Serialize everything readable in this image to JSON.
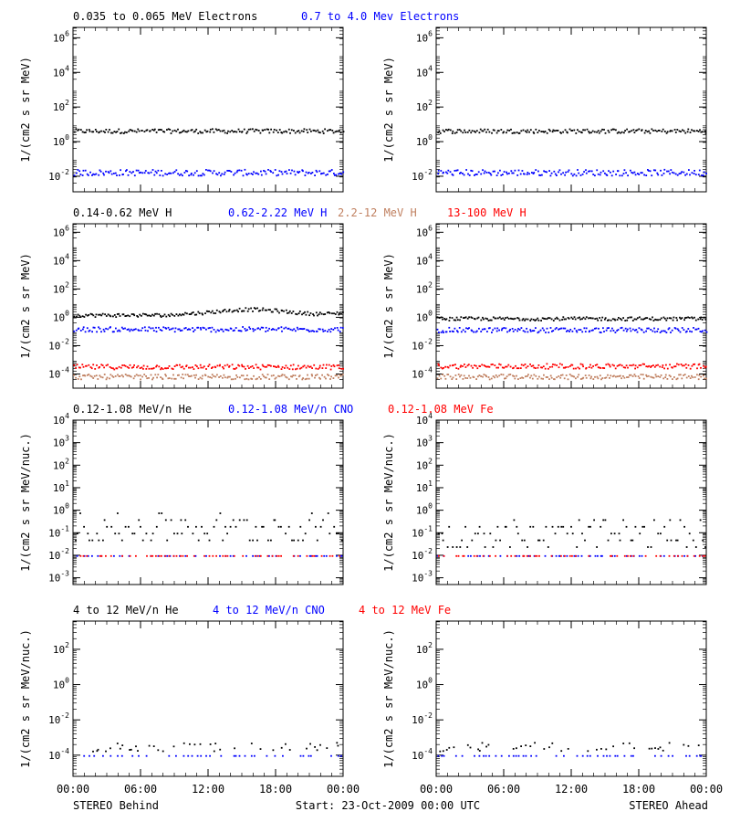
{
  "colors": {
    "black": "#000000",
    "blue": "#0000ff",
    "tan": "#c08060",
    "red": "#ff0000"
  },
  "footer": {
    "left": "STEREO Behind",
    "center": "Start: 23-Oct-2009 00:00 UTC",
    "right": "STEREO Ahead"
  },
  "chart_data": [
    {
      "id": "electrons",
      "type": "scatter",
      "scale": "log",
      "ylabel": "1/(cm2 s sr MeV)",
      "ylim_log10": [
        -2.9,
        6.6
      ],
      "yticks_log10": [
        -2,
        0,
        2,
        4,
        6
      ],
      "ytick_labels": [
        "10-2",
        "100",
        "102",
        "104",
        "106"
      ],
      "xlim_hours": [
        0,
        24
      ],
      "legend": [
        {
          "text": "0.035 to 0.065 MeV Electrons",
          "color": "#000000"
        },
        {
          "text": "0.7 to 4.0 Mev Electrons",
          "color": "#0000ff"
        }
      ],
      "series": [
        {
          "color": "#000000",
          "behind_log10": 0.65,
          "ahead_log10": 0.65
        },
        {
          "color": "#0000ff",
          "behind_log10": -1.75,
          "ahead_log10": -1.75
        }
      ]
    },
    {
      "id": "protons",
      "type": "scatter",
      "scale": "log",
      "ylabel": "1/(cm2 s sr MeV)",
      "ylim_log10": [
        -5.0,
        6.6
      ],
      "yticks_log10": [
        -4,
        -2,
        0,
        2,
        4,
        6
      ],
      "ytick_labels": [
        "10-4",
        "10-2",
        "100",
        "102",
        "104",
        "106"
      ],
      "xlim_hours": [
        0,
        24
      ],
      "legend": [
        {
          "text": "0.14-0.62 MeV H",
          "color": "#000000"
        },
        {
          "text": "0.62-2.22 MeV H",
          "color": "#0000ff"
        },
        {
          "text": "2.2-12 MeV H",
          "color": "#c08060"
        },
        {
          "text": "13-100 MeV H",
          "color": "#ff0000"
        }
      ],
      "series": [
        {
          "color": "#000000",
          "behind_log10": 0.2,
          "ahead_log10": -0.05
        },
        {
          "color": "#0000ff",
          "behind_log10": -0.8,
          "ahead_log10": -0.85
        },
        {
          "color": "#c08060",
          "behind_log10": -4.15,
          "ahead_log10": -4.15
        },
        {
          "color": "#ff0000",
          "behind_log10": -3.45,
          "ahead_log10": -3.4
        }
      ]
    },
    {
      "id": "heavy-low",
      "type": "scatter",
      "scale": "log",
      "ylabel": "1/(cm2 s sr MeV/nuc.)",
      "ylim_log10": [
        -3.3,
        4.0
      ],
      "yticks_log10": [
        -3,
        -2,
        -1,
        0,
        1,
        2,
        3,
        4
      ],
      "ytick_labels": [
        "10-3",
        "10-2",
        "10-1",
        "100",
        "101",
        "102",
        "103",
        "104"
      ],
      "xlim_hours": [
        0,
        24
      ],
      "legend": [
        {
          "text": "0.12-1.08 MeV/n He",
          "color": "#000000"
        },
        {
          "text": "0.12-1.08 MeV/n CNO",
          "color": "#0000ff"
        },
        {
          "text": "0.12-1.08 MeV Fe",
          "color": "#ff0000"
        }
      ],
      "series": [
        {
          "color": "#000000",
          "behind_log10": -1.0,
          "ahead_log10": -1.3
        },
        {
          "color": "#0000ff",
          "behind_log10": -2.0,
          "ahead_log10": -2.0
        },
        {
          "color": "#ff0000",
          "behind_log10": -2.0,
          "ahead_log10": -2.0
        }
      ]
    },
    {
      "id": "heavy-high",
      "type": "scatter",
      "scale": "log",
      "ylabel": "1/(cm2 s sr MeV/nuc.)",
      "ylim_log10": [
        -5.2,
        3.6
      ],
      "yticks_log10": [
        -4,
        -2,
        0,
        2
      ],
      "ytick_labels": [
        "10-4",
        "10-2",
        "100",
        "102"
      ],
      "xlim_hours": [
        0,
        24
      ],
      "legend": [
        {
          "text": "4 to 12 MeV/n He",
          "color": "#000000"
        },
        {
          "text": "4 to 12 MeV/n CNO",
          "color": "#0000ff"
        },
        {
          "text": "4 to 12 MeV Fe",
          "color": "#ff0000"
        }
      ],
      "series": [
        {
          "color": "#000000",
          "behind_log10": -3.75,
          "ahead_log10": -3.75
        },
        {
          "color": "#0000ff",
          "behind_log10": -4.0,
          "ahead_log10": -4.0
        }
      ]
    }
  ],
  "xaxis": {
    "ticks_hours": [
      0,
      6,
      12,
      18,
      24
    ],
    "tick_labels": [
      "00:00",
      "06:00",
      "12:00",
      "18:00",
      "00:00"
    ]
  }
}
